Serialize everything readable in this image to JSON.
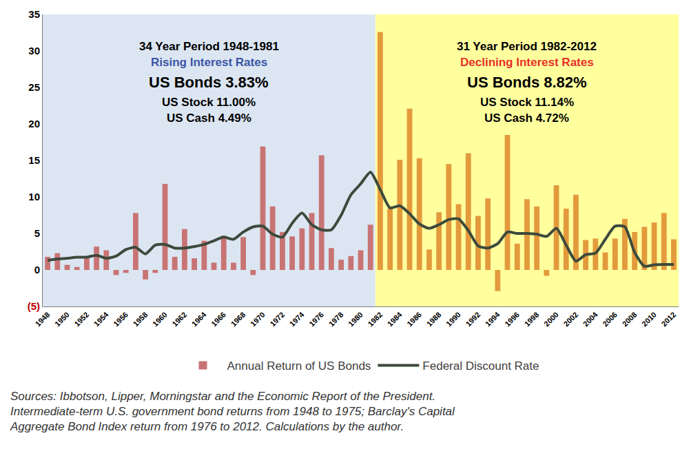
{
  "chart_data": {
    "type": "bar",
    "x": [
      1948,
      1949,
      1950,
      1951,
      1952,
      1953,
      1954,
      1955,
      1956,
      1957,
      1958,
      1959,
      1960,
      1961,
      1962,
      1963,
      1964,
      1965,
      1966,
      1967,
      1968,
      1969,
      1970,
      1971,
      1972,
      1973,
      1974,
      1975,
      1976,
      1977,
      1978,
      1979,
      1980,
      1981,
      1982,
      1983,
      1984,
      1985,
      1986,
      1987,
      1988,
      1989,
      1990,
      1991,
      1992,
      1993,
      1994,
      1995,
      1996,
      1997,
      1998,
      1999,
      2000,
      2001,
      2002,
      2003,
      2004,
      2005,
      2006,
      2007,
      2008,
      2009,
      2010,
      2011,
      2012
    ],
    "series": [
      {
        "name": "Annual Return of US Bonds",
        "type": "bar",
        "colors": [
          "#c87474",
          "#c87474",
          "#c87474",
          "#c87474",
          "#c87474",
          "#c87474",
          "#c87474",
          "#c87474",
          "#c87474",
          "#c87474",
          "#c87474",
          "#c87474",
          "#c87474",
          "#c87474",
          "#c87474",
          "#c87474",
          "#c87474",
          "#c87474",
          "#c87474",
          "#c87474",
          "#c87474",
          "#c87474",
          "#c87474",
          "#c87474",
          "#c87474",
          "#c87474",
          "#c87474",
          "#c87474",
          "#c87474",
          "#c87474",
          "#c87474",
          "#c87474",
          "#c87474",
          "#c87474",
          "#e39a3c",
          "#e39a3c",
          "#e39a3c",
          "#e39a3c",
          "#e39a3c",
          "#e39a3c",
          "#e39a3c",
          "#e39a3c",
          "#e39a3c",
          "#e39a3c",
          "#e39a3c",
          "#e39a3c",
          "#e39a3c",
          "#e39a3c",
          "#e39a3c",
          "#e39a3c",
          "#e39a3c",
          "#e39a3c",
          "#e39a3c",
          "#e39a3c",
          "#e39a3c",
          "#e39a3c",
          "#e39a3c",
          "#e39a3c",
          "#e39a3c",
          "#e39a3c",
          "#e39a3c",
          "#e39a3c",
          "#e39a3c",
          "#e39a3c",
          "#e39a3c"
        ],
        "values": [
          1.8,
          2.3,
          0.7,
          0.4,
          1.6,
          3.2,
          2.7,
          -0.7,
          -0.4,
          7.8,
          -1.3,
          -0.4,
          11.8,
          1.8,
          5.6,
          1.6,
          4.0,
          1.0,
          4.7,
          1.0,
          4.5,
          -0.7,
          16.9,
          8.7,
          5.2,
          4.6,
          5.7,
          7.8,
          15.7,
          3.0,
          1.4,
          1.9,
          2.7,
          6.2,
          32.6,
          8.4,
          15.1,
          22.1,
          15.3,
          2.8,
          7.9,
          14.5,
          9.0,
          16.0,
          7.4,
          9.8,
          -2.9,
          18.5,
          3.6,
          9.7,
          8.7,
          -0.8,
          11.6,
          8.4,
          10.3,
          4.1,
          4.3,
          2.4,
          4.3,
          7.0,
          5.2,
          5.9,
          6.5,
          7.8,
          4.2
        ]
      },
      {
        "name": "Federal Discount Rate",
        "type": "line",
        "color": "#3c4a3c",
        "values": [
          1.3,
          1.5,
          1.6,
          1.75,
          1.75,
          2.0,
          1.6,
          1.9,
          2.8,
          3.1,
          2.2,
          3.4,
          3.5,
          3.0,
          3.0,
          3.2,
          3.5,
          4.0,
          4.5,
          4.2,
          5.2,
          5.9,
          6.0,
          4.9,
          4.5,
          6.4,
          7.8,
          6.2,
          5.5,
          5.5,
          7.5,
          10.3,
          11.8,
          13.4,
          11.0,
          8.5,
          8.8,
          7.7,
          6.3,
          5.7,
          6.2,
          6.9,
          7.0,
          5.4,
          3.3,
          3.0,
          3.6,
          5.2,
          5.0,
          5.0,
          4.9,
          4.6,
          5.7,
          3.4,
          1.2,
          2.1,
          2.3,
          4.2,
          6.0,
          5.9,
          2.4,
          0.5,
          0.7,
          0.75,
          0.75
        ]
      }
    ],
    "xlim": [
      1947.5,
      2012.5
    ],
    "xticks": [
      1948,
      1950,
      1952,
      1954,
      1956,
      1958,
      1960,
      1962,
      1964,
      1966,
      1968,
      1970,
      1972,
      1974,
      1976,
      1978,
      1980,
      1982,
      1984,
      1986,
      1988,
      1990,
      1992,
      1994,
      1996,
      1998,
      2000,
      2002,
      2004,
      2006,
      2008,
      2010,
      2012
    ],
    "ylim": [
      -5,
      35
    ],
    "yticks": [
      {
        "value": -5,
        "label": "(5)",
        "color": "#c00000"
      },
      0,
      5,
      10,
      15,
      20,
      25,
      30,
      35
    ],
    "grid": false,
    "legend": "bottom",
    "periods": [
      {
        "start": 1948,
        "end": 1981,
        "color": "#dce6f2",
        "lines": [
          {
            "text": "34 Year Period 1948-1981",
            "color": "#000000"
          },
          {
            "text": "Rising Interest Rates",
            "color": "#3a55a5"
          },
          {
            "text": "US Bonds 3.83%",
            "color": "#000000"
          },
          {
            "text": "US Stock 11.00%",
            "color": "#000000"
          },
          {
            "text": "US Cash 4.49%",
            "color": "#000000"
          }
        ]
      },
      {
        "start": 1982,
        "end": 2012,
        "color": "#ffff9e",
        "lines": [
          {
            "text": "31 Year Period 1982-2012",
            "color": "#000000"
          },
          {
            "text": "Declining Interest Rates",
            "color": "#e8302a"
          },
          {
            "text": "US Bonds 8.82%",
            "color": "#000000"
          },
          {
            "text": "US Stock 11.14%",
            "color": "#000000"
          },
          {
            "text": "US Cash 4.72%",
            "color": "#000000"
          }
        ]
      }
    ],
    "note": [
      "Sources: Ibbotson, Lipper, Morningstar and the Economic Report of the President.",
      "Intermediate-term U.S. government bond returns from 1948 to 1975; Barclay's Capital",
      "Aggregate Bond Index return from 1976 to 2012. Calculations by the author."
    ]
  }
}
